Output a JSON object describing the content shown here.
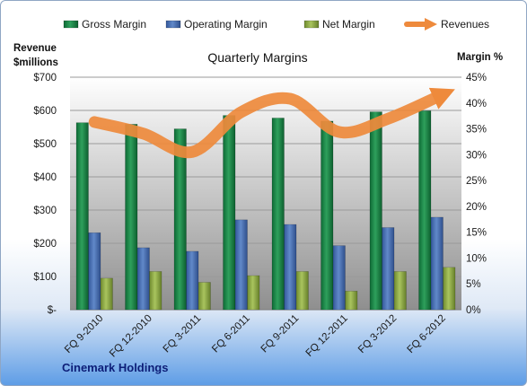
{
  "chart_data": {
    "type": "bar",
    "title": "Quarterly Margins",
    "footer": "Cinemark Holdings",
    "left_axis": {
      "label_line1": "Revenue",
      "label_line2": "$millions",
      "range": [
        0,
        700
      ],
      "ticks": [
        0,
        100,
        200,
        300,
        400,
        500,
        600,
        700
      ],
      "tick_labels": [
        "$-",
        "$100",
        "$200",
        "$300",
        "$400",
        "$500",
        "$600",
        "$700"
      ]
    },
    "right_axis": {
      "label": "Margin %",
      "range": [
        0,
        45
      ],
      "ticks": [
        0,
        5,
        10,
        15,
        20,
        25,
        30,
        35,
        40,
        45
      ],
      "tick_labels": [
        "0%",
        "5%",
        "10%",
        "15%",
        "20%",
        "25%",
        "30%",
        "35%",
        "40%",
        "45%"
      ]
    },
    "categories": [
      "FQ 9-2010",
      "FQ 12-2010",
      "FQ 3-2011",
      "FQ 6-2011",
      "FQ 9-2011",
      "FQ 12-2011",
      "FQ 3-2012",
      "FQ 6-2012"
    ],
    "series": [
      {
        "name": "Gross Margin",
        "type": "bar",
        "axis": "right",
        "color": "#1d8a4a",
        "values": [
          36.2,
          35.9,
          35.0,
          37.6,
          37.1,
          36.5,
          38.3,
          38.5
        ]
      },
      {
        "name": "Operating Margin",
        "type": "bar",
        "axis": "right",
        "color": "#4a6fae",
        "values": [
          14.9,
          12.0,
          11.3,
          17.4,
          16.5,
          12.4,
          15.9,
          17.9
        ]
      },
      {
        "name": "Net Margin",
        "type": "bar",
        "axis": "right",
        "color": "#94ad4e",
        "values": [
          6.1,
          7.4,
          5.3,
          6.6,
          7.4,
          3.6,
          7.4,
          8.2
        ]
      },
      {
        "name": "Revenues",
        "type": "line",
        "axis": "left",
        "color": "#ee8a3c",
        "values": [
          565,
          530,
          475,
          595,
          635,
          535,
          575,
          640
        ]
      }
    ],
    "legend_position": "top",
    "grid": true
  }
}
